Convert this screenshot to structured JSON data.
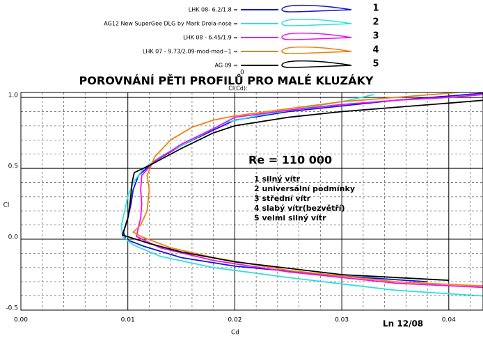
{
  "chart_data": {
    "type": "line",
    "title": "POROVNÁNÍ PĚTI PROFILŮ PRO MALÉ KLUZÁKY",
    "subtitle": "0",
    "y_axis_top_label": "Cl(Cd):",
    "y_axis_label": "Cl",
    "x_axis_label": "Cd",
    "annotations": {
      "re": "Re = 110 000",
      "signature": "Ln 12/08",
      "list": [
        "1  silný vítr",
        "2  universální podmínky",
        "3  střední vítr",
        "4  slabý vítr(bezvětří)",
        "5  velmi silný vítr"
      ]
    },
    "xlim": [
      0,
      0.0432
    ],
    "ylim": [
      -0.5,
      1.035
    ],
    "xticks": [
      {
        "value": 0,
        "label": "0.00"
      },
      0.01,
      0.02,
      0.03,
      0.04
    ],
    "yticks": [
      -0.5,
      {
        "value": 0,
        "label": "0.0"
      },
      0.5,
      {
        "value": 1,
        "label": "1.0"
      }
    ],
    "xminorticks": [
      0.002,
      0.004,
      0.006,
      0.008,
      0.012,
      0.014,
      0.016,
      0.018,
      0.022,
      0.024,
      0.026,
      0.028,
      0.032,
      0.034,
      0.036,
      0.038,
      0.042
    ],
    "yminorticks": [
      -0.4,
      -0.3,
      -0.2,
      -0.1,
      0.1,
      0.2,
      0.3,
      0.4,
      0.6,
      0.7,
      0.8,
      0.9
    ],
    "grid": true,
    "series": [
      {
        "name": "LHK 08- 6.2/1.8 =",
        "label": "1",
        "color": "#1414d8",
        "x": [
          0.038,
          0.03,
          0.02,
          0.015,
          0.0115,
          0.0098,
          0.0096,
          0.01,
          0.0103,
          0.0105,
          0.011,
          0.0125,
          0.015,
          0.018,
          0.02,
          0.025,
          0.03,
          0.035,
          0.04,
          0.0432
        ],
        "values": [
          -0.3,
          -0.26,
          -0.19,
          -0.13,
          -0.05,
          0,
          0.05,
          0.15,
          0.25,
          0.35,
          0.45,
          0.55,
          0.66,
          0.77,
          0.84,
          0.9,
          0.94,
          0.98,
          1.01,
          1.03
        ]
      },
      {
        "name": "AG12 New SuperGee DLG by Mark Drela-nose =",
        "label": "2",
        "color": "#30e0e0",
        "x": [
          0.0432,
          0.035,
          0.025,
          0.018,
          0.013,
          0.0105,
          0.0095,
          0.0094,
          0.0097,
          0.01,
          0.0105,
          0.0115,
          0.013,
          0.016,
          0.019,
          0.022,
          0.026,
          0.03,
          0.033
        ],
        "values": [
          -0.4,
          -0.36,
          -0.27,
          -0.2,
          -0.12,
          -0.04,
          0.02,
          0.1,
          0.2,
          0.3,
          0.4,
          0.5,
          0.58,
          0.7,
          0.82,
          0.87,
          0.92,
          0.97,
          1.02
        ]
      },
      {
        "name": "LHK 08  - 6.45/1.9 =",
        "label": "3",
        "color": "#f010f0",
        "x": [
          0.0432,
          0.035,
          0.025,
          0.018,
          0.013,
          0.0108,
          0.0112,
          0.0113,
          0.0112,
          0.0113,
          0.0125,
          0.015,
          0.018,
          0.02,
          0.025,
          0.03,
          0.035,
          0.04,
          0.0432
        ],
        "values": [
          -0.34,
          -0.31,
          -0.23,
          -0.15,
          -0.06,
          0.02,
          0.15,
          0.25,
          0.35,
          0.45,
          0.55,
          0.67,
          0.78,
          0.86,
          0.91,
          0.95,
          0.98,
          1,
          1.02
        ]
      },
      {
        "name": "LHK 07  - 9.73/2.09-mod-mod~1 =",
        "label": "4",
        "color": "#f08010",
        "x": [
          0.0432,
          0.035,
          0.025,
          0.018,
          0.014,
          0.0112,
          0.0105,
          0.0112,
          0.0118,
          0.012,
          0.0118,
          0.0125,
          0.014,
          0.016,
          0.018,
          0.02,
          0.025,
          0.03,
          0.035,
          0.04,
          0.0432
        ],
        "values": [
          -0.33,
          -0.3,
          -0.22,
          -0.13,
          -0.06,
          0.02,
          0.05,
          0.1,
          0.2,
          0.35,
          0.45,
          0.58,
          0.7,
          0.79,
          0.84,
          0.87,
          0.92,
          0.97,
          1,
          1.03,
          1.05
        ]
      },
      {
        "name": "AG 09 =",
        "label": "5",
        "color": "#000000",
        "x": [
          0.04,
          0.03,
          0.02,
          0.015,
          0.012,
          0.0095,
          0.01,
          0.0102,
          0.0104,
          0.0106,
          0.012,
          0.015,
          0.018,
          0.02,
          0.025,
          0.03,
          0.035,
          0.04,
          0.0432
        ],
        "values": [
          -0.29,
          -0.25,
          -0.16,
          -0.09,
          -0.03,
          0.03,
          0.15,
          0.25,
          0.4,
          0.47,
          0.52,
          0.64,
          0.75,
          0.8,
          0.86,
          0.9,
          0.93,
          0.96,
          0.98
        ]
      }
    ]
  }
}
